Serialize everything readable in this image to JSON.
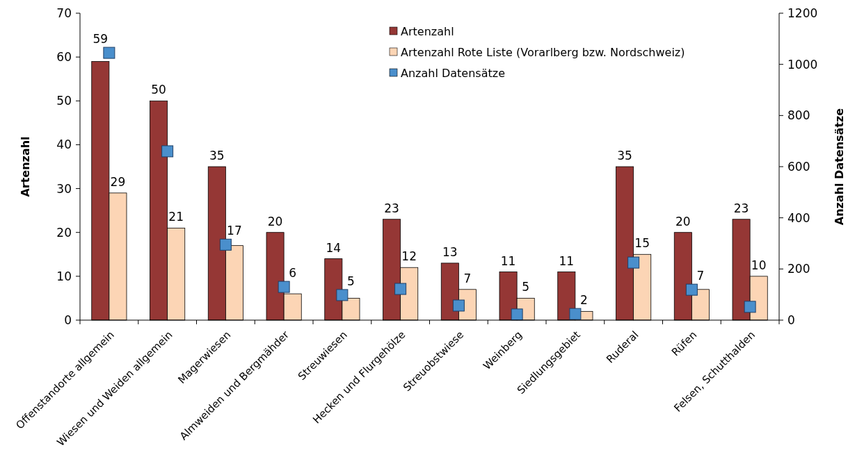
{
  "chart_data": {
    "type": "bar",
    "categories": [
      "Offenstandorte allgemein",
      "Wiesen und Weiden allgemein",
      "Magerwiesen",
      "Almweiden und Bergmähder",
      "Streuwiesen",
      "Hecken und Flurgehölze",
      "Streuobstwiese",
      "Weinberg",
      "Siedlungsgebiet",
      "Ruderal",
      "Rüfen",
      "Felsen, Schutthalden"
    ],
    "series": [
      {
        "name": "Artenzahl",
        "color": "#953735",
        "values": [
          59,
          50,
          35,
          20,
          14,
          23,
          13,
          11,
          11,
          35,
          20,
          23
        ],
        "value_labels": [
          "59",
          "50",
          "35",
          "20",
          "14",
          "23",
          "13",
          "11",
          "11",
          "35",
          "20",
          "23"
        ]
      },
      {
        "name": "Artenzahl Rote Liste (Vorarlberg bzw. Nordschweiz)",
        "color": "#fcd5b5",
        "values": [
          29,
          21,
          17,
          6,
          5,
          12,
          7,
          5,
          2,
          15,
          7,
          10
        ],
        "value_labels": [
          "29",
          "21",
          "17",
          "6",
          "5",
          "12",
          "7",
          "5",
          "2",
          "15",
          "7",
          "10"
        ]
      },
      {
        "name": "Anzahl Datensätze",
        "type": "scatter",
        "axis": "y2",
        "marker": "square",
        "color": "#4a8fcc",
        "values": [
          1045,
          660,
          295,
          130,
          98,
          122,
          57,
          22,
          24,
          225,
          119,
          52
        ]
      }
    ],
    "ylabel": "Artenzahl",
    "y2label": "Anzahl Datensätze",
    "ylim": [
      0,
      70
    ],
    "yticks": [
      0,
      10,
      20,
      30,
      40,
      50,
      60,
      70
    ],
    "y2lim": [
      0,
      1200
    ],
    "y2ticks": [
      0,
      200,
      400,
      600,
      800,
      1000,
      1200
    ],
    "legend": "top",
    "grid": false
  }
}
